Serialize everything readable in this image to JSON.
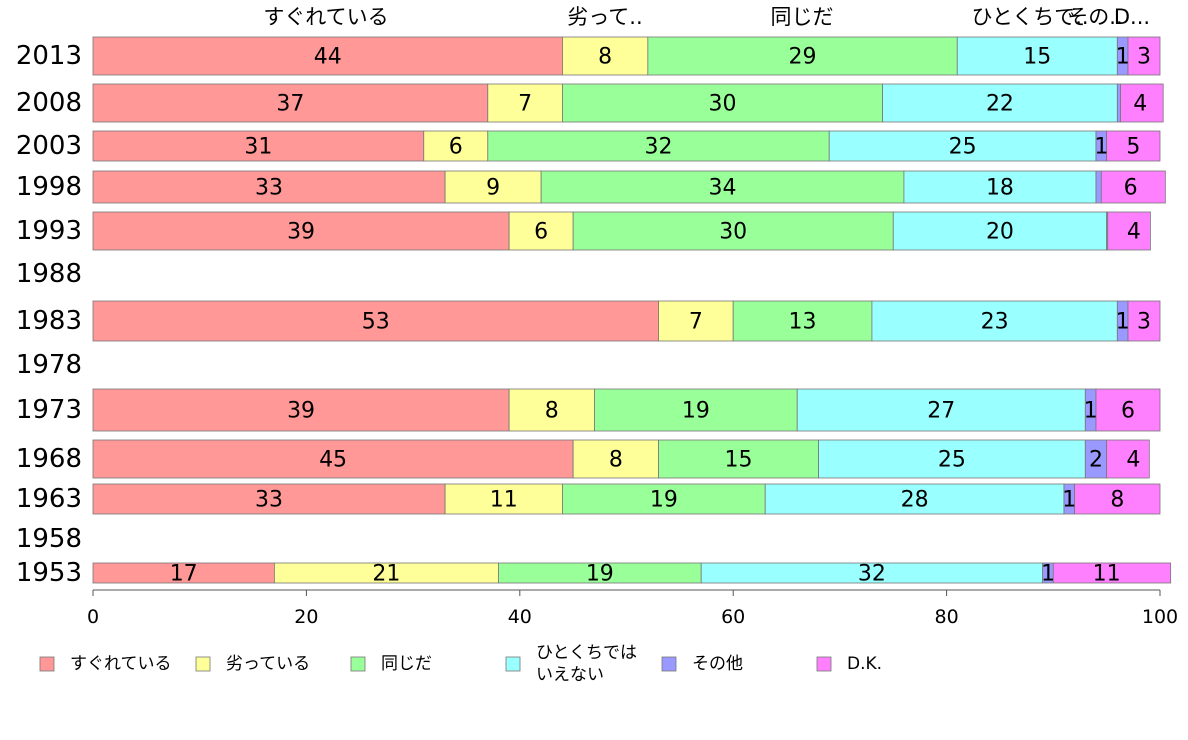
{
  "chart_data": {
    "type": "bar",
    "orientation": "horizontal",
    "stacked": true,
    "categories": [
      "2013",
      "2008",
      "2003",
      "1998",
      "1993",
      "1988",
      "1983",
      "1978",
      "1973",
      "1968",
      "1963",
      "1958",
      "1953"
    ],
    "series": [
      {
        "name": "すぐれている",
        "color": "#ff9896",
        "values": [
          44,
          37,
          31,
          33,
          39,
          null,
          53,
          null,
          39,
          45,
          33,
          null,
          17
        ]
      },
      {
        "name": "劣っている",
        "color": "#ffff99",
        "values": [
          8,
          7,
          6,
          9,
          6,
          null,
          7,
          null,
          8,
          8,
          11,
          null,
          21
        ]
      },
      {
        "name": "同じだ",
        "color": "#99ff99",
        "values": [
          29,
          30,
          32,
          34,
          30,
          null,
          13,
          null,
          19,
          15,
          19,
          null,
          19
        ]
      },
      {
        "name": "ひとくちではいえない",
        "color": "#99ffff",
        "values": [
          15,
          22,
          25,
          18,
          20,
          null,
          23,
          null,
          27,
          25,
          28,
          null,
          32
        ]
      },
      {
        "name": "その他",
        "color": "#9999ff",
        "values": [
          1,
          0.3,
          1,
          0.5,
          0.1,
          null,
          1,
          null,
          1,
          2,
          1,
          null,
          1
        ]
      },
      {
        "name": "D.K.",
        "color": "#ff80ff",
        "values": [
          3,
          4,
          5,
          6,
          4,
          null,
          3,
          null,
          6,
          4,
          8,
          null,
          11
        ]
      }
    ],
    "labels": [
      [
        "44",
        "8",
        "29",
        "15",
        "1",
        "3"
      ],
      [
        "37",
        "7",
        "30",
        "22",
        "",
        "4"
      ],
      [
        "31",
        "6",
        "32",
        "25",
        "1",
        "5"
      ],
      [
        "33",
        "9",
        "34",
        "18",
        "",
        "6"
      ],
      [
        "39",
        "6",
        "30",
        "20",
        "",
        "4"
      ],
      null,
      [
        "53",
        "7",
        "13",
        "23",
        "1",
        "3"
      ],
      null,
      [
        "39",
        "8",
        "19",
        "27",
        "1",
        "6"
      ],
      [
        "45",
        "8",
        "15",
        "25",
        "2",
        "4"
      ],
      [
        "33",
        "11",
        "19",
        "28",
        "1",
        "8"
      ],
      null,
      [
        "17",
        "21",
        "19",
        "32",
        "1",
        "11"
      ]
    ],
    "top_labels": [
      "すぐれている",
      "劣って..",
      "同じだ",
      "ひとくちで..",
      "その..",
      "D..."
    ],
    "xlim": [
      0,
      100
    ],
    "x_ticks": [
      "0",
      "20",
      "40",
      "60",
      "80",
      "100"
    ],
    "legend": {
      "placement": "bottom",
      "items": [
        {
          "label": "すぐれている",
          "color": "#ff9896"
        },
        {
          "label": "劣っている",
          "color": "#ffff99"
        },
        {
          "label": "同じだ",
          "color": "#99ff99"
        },
        {
          "label_line1": "ひとくちでは",
          "label_line2": "いえない",
          "color": "#99ffff"
        },
        {
          "label": "その他",
          "color": "#9999ff"
        },
        {
          "label": "D.K.",
          "color": "#ff80ff"
        }
      ]
    },
    "grid": false
  }
}
